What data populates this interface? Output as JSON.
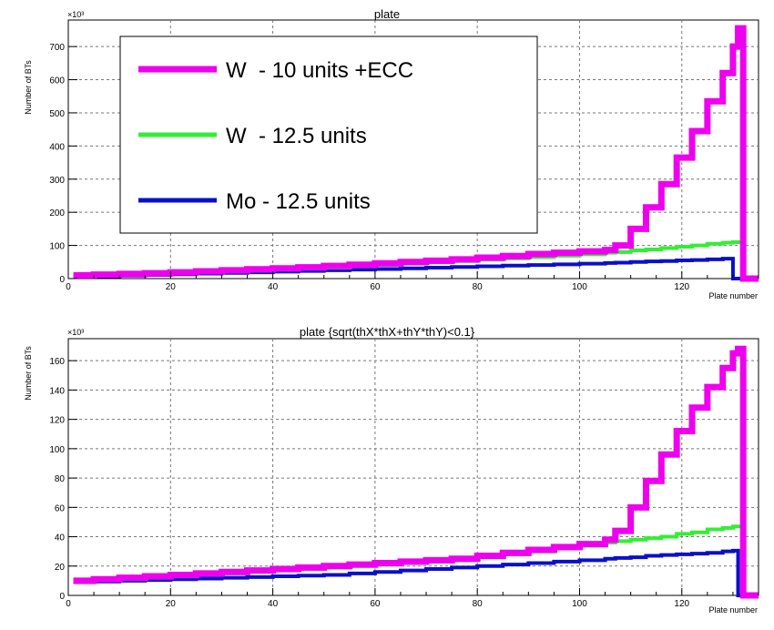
{
  "chart_data": [
    {
      "type": "line",
      "step": true,
      "title": "plate",
      "xlabel": "Plate number",
      "ylabel": "Number of BTs",
      "y_exponent_label": "×10³",
      "xlim": [
        0,
        135
      ],
      "ylim": [
        0,
        780
      ],
      "xticks": [
        0,
        20,
        40,
        60,
        80,
        100,
        120
      ],
      "yticks": [
        0,
        100,
        200,
        300,
        400,
        500,
        600,
        700
      ],
      "grid": true,
      "legend_position": "top-left",
      "x": [
        1,
        5,
        10,
        15,
        20,
        25,
        30,
        35,
        40,
        45,
        50,
        55,
        60,
        65,
        70,
        75,
        80,
        85,
        90,
        95,
        100,
        105,
        107,
        110,
        113,
        116,
        119,
        122,
        125,
        128,
        130,
        131,
        132,
        135
      ],
      "series": [
        {
          "name": "W  - 10 units +ECC",
          "color": "#ee00ee",
          "values": [
            10,
            12,
            14,
            16,
            19,
            22,
            25,
            28,
            31,
            34,
            38,
            42,
            46,
            50,
            54,
            58,
            63,
            68,
            74,
            78,
            82,
            86,
            100,
            150,
            215,
            285,
            365,
            445,
            535,
            620,
            700,
            755,
            0,
            0
          ]
        },
        {
          "name": "W  - 12.5 units",
          "color": "#33ee33",
          "values": [
            8,
            10,
            12,
            14,
            16,
            18,
            21,
            24,
            27,
            30,
            33,
            37,
            41,
            45,
            49,
            53,
            57,
            61,
            65,
            69,
            73,
            78,
            80,
            85,
            88,
            92,
            96,
            100,
            105,
            108,
            110,
            110,
            0,
            0
          ]
        },
        {
          "name": "Mo - 12.5 units",
          "color": "#0a10c8",
          "values": [
            6,
            7,
            9,
            11,
            13,
            15,
            17,
            19,
            21,
            23,
            25,
            27,
            29,
            31,
            33,
            35,
            37,
            39,
            41,
            43,
            45,
            47,
            48,
            50,
            52,
            53,
            55,
            56,
            58,
            60,
            0,
            0,
            0,
            0
          ]
        }
      ]
    },
    {
      "type": "line",
      "step": true,
      "title": "plate {sqrt(thX*thX+thY*thY)<0.1}",
      "xlabel": "Plate number",
      "ylabel": "Number of BTs",
      "y_exponent_label": "×10³",
      "xlim": [
        0,
        135
      ],
      "ylim": [
        0,
        175
      ],
      "xticks": [
        0,
        20,
        40,
        60,
        80,
        100,
        120
      ],
      "yticks": [
        0,
        20,
        40,
        60,
        80,
        100,
        120,
        140,
        160
      ],
      "grid": true,
      "x": [
        1,
        5,
        10,
        15,
        20,
        25,
        30,
        35,
        40,
        45,
        50,
        55,
        60,
        65,
        70,
        75,
        80,
        85,
        90,
        95,
        100,
        105,
        107,
        110,
        113,
        116,
        119,
        122,
        125,
        128,
        130,
        131,
        132,
        135
      ],
      "series": [
        {
          "name": "W  - 10 units +ECC",
          "color": "#ee00ee",
          "values": [
            10,
            11,
            12,
            13,
            14,
            15,
            16,
            17,
            18,
            19,
            20,
            21,
            22,
            23,
            24,
            25,
            27,
            29,
            31,
            33,
            35,
            38,
            44,
            60,
            78,
            96,
            112,
            128,
            142,
            155,
            165,
            168,
            0,
            0
          ]
        },
        {
          "name": "W  - 12.5 units",
          "color": "#33ee33",
          "values": [
            10,
            10.5,
            11,
            12,
            13,
            14,
            15,
            16,
            17,
            18,
            19,
            20,
            21,
            22,
            23,
            24,
            26,
            28,
            30,
            32,
            34,
            36,
            37,
            38,
            39,
            40,
            42,
            43,
            45,
            46,
            47,
            47,
            0,
            0
          ]
        },
        {
          "name": "Mo - 12.5 units",
          "color": "#0a10c8",
          "values": [
            9,
            9.5,
            10,
            10.5,
            11,
            11.5,
            12,
            12.5,
            13,
            13.5,
            14,
            15,
            16,
            17,
            18,
            19,
            20,
            21,
            22,
            23,
            24,
            25,
            25.5,
            26,
            27,
            27.5,
            28,
            28.5,
            29,
            30,
            30.5,
            0,
            0,
            0
          ]
        }
      ]
    }
  ]
}
